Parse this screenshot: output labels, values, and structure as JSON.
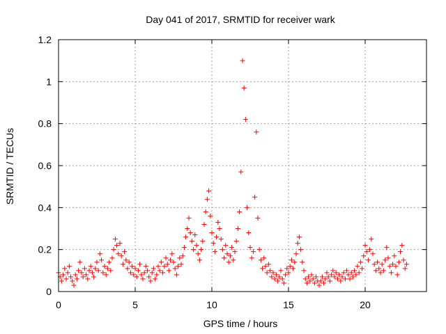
{
  "chart_data": {
    "type": "scatter",
    "title": "Day 041 of 2017, SRMTID for receiver wark",
    "xlabel": "GPS time / hours",
    "ylabel": "SRMTID / TECUs",
    "xlim": [
      0,
      24
    ],
    "ylim": [
      0,
      1.2
    ],
    "x_ticks": [
      0,
      5,
      10,
      15,
      20
    ],
    "x_tick_labels": [
      "0",
      "5",
      "10",
      "15",
      "20"
    ],
    "y_ticks": [
      0,
      0.2,
      0.4,
      0.6,
      0.8,
      1,
      1.2
    ],
    "y_tick_labels": [
      "0",
      "0.2",
      "0.4",
      "0.6",
      "0.8",
      "1",
      "1.2"
    ],
    "grid": true,
    "marker": "+",
    "color": "#ff0000",
    "series": [
      {
        "name": "SRMTID",
        "points": [
          [
            0.0,
            0.09
          ],
          [
            0.1,
            0.07
          ],
          [
            0.2,
            0.05
          ],
          [
            0.3,
            0.08
          ],
          [
            0.4,
            0.11
          ],
          [
            0.5,
            0.06
          ],
          [
            0.6,
            0.09
          ],
          [
            0.7,
            0.12
          ],
          [
            0.8,
            0.07
          ],
          [
            0.9,
            0.05
          ],
          [
            1.0,
            0.03
          ],
          [
            1.1,
            0.08
          ],
          [
            1.2,
            0.06
          ],
          [
            1.3,
            0.1
          ],
          [
            1.4,
            0.14
          ],
          [
            1.5,
            0.09
          ],
          [
            1.6,
            0.07
          ],
          [
            1.7,
            0.11
          ],
          [
            1.8,
            0.08
          ],
          [
            1.9,
            0.06
          ],
          [
            2.0,
            0.1
          ],
          [
            2.1,
            0.12
          ],
          [
            2.2,
            0.09
          ],
          [
            2.3,
            0.07
          ],
          [
            2.4,
            0.11
          ],
          [
            2.5,
            0.14
          ],
          [
            2.6,
            0.1
          ],
          [
            2.7,
            0.18
          ],
          [
            2.8,
            0.15
          ],
          [
            2.9,
            0.09
          ],
          [
            3.0,
            0.12
          ],
          [
            3.1,
            0.08
          ],
          [
            3.2,
            0.11
          ],
          [
            3.3,
            0.14
          ],
          [
            3.4,
            0.1
          ],
          [
            3.5,
            0.16
          ],
          [
            3.6,
            0.2
          ],
          [
            3.7,
            0.25
          ],
          [
            3.8,
            0.22
          ],
          [
            3.9,
            0.18
          ],
          [
            4.0,
            0.23
          ],
          [
            4.1,
            0.17
          ],
          [
            4.2,
            0.13
          ],
          [
            4.3,
            0.19
          ],
          [
            4.4,
            0.15
          ],
          [
            4.5,
            0.11
          ],
          [
            4.6,
            0.14
          ],
          [
            4.7,
            0.09
          ],
          [
            4.8,
            0.12
          ],
          [
            4.9,
            0.08
          ],
          [
            5.0,
            0.11
          ],
          [
            5.1,
            0.07
          ],
          [
            5.2,
            0.1
          ],
          [
            5.3,
            0.13
          ],
          [
            5.4,
            0.08
          ],
          [
            5.5,
            0.06
          ],
          [
            5.6,
            0.09
          ],
          [
            5.7,
            0.12
          ],
          [
            5.8,
            0.1
          ],
          [
            5.9,
            0.07
          ],
          [
            6.0,
            0.05
          ],
          [
            6.1,
            0.09
          ],
          [
            6.2,
            0.11
          ],
          [
            6.3,
            0.06
          ],
          [
            6.4,
            0.08
          ],
          [
            6.5,
            0.12
          ],
          [
            6.6,
            0.1
          ],
          [
            6.7,
            0.14
          ],
          [
            6.8,
            0.09
          ],
          [
            6.9,
            0.12
          ],
          [
            7.0,
            0.16
          ],
          [
            7.1,
            0.13
          ],
          [
            7.2,
            0.1
          ],
          [
            7.3,
            0.15
          ],
          [
            7.4,
            0.18
          ],
          [
            7.5,
            0.14
          ],
          [
            7.6,
            0.11
          ],
          [
            7.7,
            0.08
          ],
          [
            7.8,
            0.12
          ],
          [
            7.9,
            0.16
          ],
          [
            8.0,
            0.13
          ],
          [
            8.1,
            0.17
          ],
          [
            8.2,
            0.21
          ],
          [
            8.3,
            0.26
          ],
          [
            8.4,
            0.3
          ],
          [
            8.5,
            0.35
          ],
          [
            8.6,
            0.28
          ],
          [
            8.7,
            0.24
          ],
          [
            8.8,
            0.2
          ],
          [
            8.9,
            0.27
          ],
          [
            9.0,
            0.22
          ],
          [
            9.1,
            0.18
          ],
          [
            9.2,
            0.15
          ],
          [
            9.3,
            0.2
          ],
          [
            9.4,
            0.24
          ],
          [
            9.5,
            0.32
          ],
          [
            9.6,
            0.38
          ],
          [
            9.7,
            0.44
          ],
          [
            9.8,
            0.48
          ],
          [
            9.9,
            0.36
          ],
          [
            10.0,
            0.28
          ],
          [
            10.1,
            0.23
          ],
          [
            10.2,
            0.19
          ],
          [
            10.3,
            0.26
          ],
          [
            10.4,
            0.33
          ],
          [
            10.5,
            0.3
          ],
          [
            10.6,
            0.25
          ],
          [
            10.7,
            0.2
          ],
          [
            10.8,
            0.16
          ],
          [
            10.9,
            0.22
          ],
          [
            11.0,
            0.18
          ],
          [
            11.1,
            0.14
          ],
          [
            11.2,
            0.17
          ],
          [
            11.3,
            0.21
          ],
          [
            11.4,
            0.15
          ],
          [
            11.5,
            0.19
          ],
          [
            11.6,
            0.24
          ],
          [
            11.7,
            0.3
          ],
          [
            11.8,
            0.38
          ],
          [
            11.9,
            0.57
          ],
          [
            12.0,
            1.1
          ],
          [
            12.1,
            0.97
          ],
          [
            12.2,
            0.82
          ],
          [
            12.3,
            0.4
          ],
          [
            12.4,
            0.28
          ],
          [
            12.5,
            0.21
          ],
          [
            12.6,
            0.16
          ],
          [
            12.7,
            0.19
          ],
          [
            12.8,
            0.45
          ],
          [
            12.9,
            0.76
          ],
          [
            13.0,
            0.35
          ],
          [
            13.1,
            0.2
          ],
          [
            13.2,
            0.15
          ],
          [
            13.3,
            0.11
          ],
          [
            13.4,
            0.16
          ],
          [
            13.5,
            0.12
          ],
          [
            13.6,
            0.09
          ],
          [
            13.7,
            0.13
          ],
          [
            13.8,
            0.1
          ],
          [
            13.9,
            0.07
          ],
          [
            14.0,
            0.09
          ],
          [
            14.1,
            0.06
          ],
          [
            14.2,
            0.08
          ],
          [
            14.3,
            0.05
          ],
          [
            14.4,
            0.07
          ],
          [
            14.5,
            0.1
          ],
          [
            14.6,
            0.06
          ],
          [
            14.7,
            0.04
          ],
          [
            14.8,
            0.08
          ],
          [
            14.9,
            0.11
          ],
          [
            15.0,
            0.09
          ],
          [
            15.1,
            0.12
          ],
          [
            15.2,
            0.15
          ],
          [
            15.3,
            0.11
          ],
          [
            15.4,
            0.14
          ],
          [
            15.5,
            0.18
          ],
          [
            15.6,
            0.23
          ],
          [
            15.7,
            0.26
          ],
          [
            15.8,
            0.2
          ],
          [
            15.9,
            0.14
          ],
          [
            16.0,
            0.1
          ],
          [
            16.1,
            0.06
          ],
          [
            16.2,
            0.04
          ],
          [
            16.3,
            0.07
          ],
          [
            16.4,
            0.05
          ],
          [
            16.5,
            0.08
          ],
          [
            16.6,
            0.06
          ],
          [
            16.7,
            0.04
          ],
          [
            16.8,
            0.07
          ],
          [
            16.9,
            0.05
          ],
          [
            17.0,
            0.03
          ],
          [
            17.1,
            0.05
          ],
          [
            17.2,
            0.07
          ],
          [
            17.3,
            0.04
          ],
          [
            17.4,
            0.06
          ],
          [
            17.5,
            0.09
          ],
          [
            17.6,
            0.07
          ],
          [
            17.7,
            0.05
          ],
          [
            17.8,
            0.08
          ],
          [
            17.9,
            0.1
          ],
          [
            18.0,
            0.07
          ],
          [
            18.1,
            0.09
          ],
          [
            18.2,
            0.06
          ],
          [
            18.3,
            0.08
          ],
          [
            18.4,
            0.05
          ],
          [
            18.5,
            0.07
          ],
          [
            18.6,
            0.09
          ],
          [
            18.7,
            0.06
          ],
          [
            18.8,
            0.1
          ],
          [
            18.9,
            0.08
          ],
          [
            19.0,
            0.06
          ],
          [
            19.1,
            0.09
          ],
          [
            19.2,
            0.07
          ],
          [
            19.3,
            0.1
          ],
          [
            19.4,
            0.08
          ],
          [
            19.5,
            0.12
          ],
          [
            19.6,
            0.09
          ],
          [
            19.7,
            0.14
          ],
          [
            19.8,
            0.11
          ],
          [
            19.9,
            0.17
          ],
          [
            20.0,
            0.22
          ],
          [
            20.1,
            0.19
          ],
          [
            20.2,
            0.15
          ],
          [
            20.3,
            0.2
          ],
          [
            20.4,
            0.25
          ],
          [
            20.5,
            0.18
          ],
          [
            20.6,
            0.13
          ],
          [
            20.7,
            0.1
          ],
          [
            20.8,
            0.14
          ],
          [
            20.9,
            0.11
          ],
          [
            21.0,
            0.09
          ],
          [
            21.1,
            0.13
          ],
          [
            21.2,
            0.1
          ],
          [
            21.3,
            0.15
          ],
          [
            21.4,
            0.21
          ],
          [
            21.5,
            0.16
          ],
          [
            21.6,
            0.12
          ],
          [
            21.7,
            0.09
          ],
          [
            21.8,
            0.13
          ],
          [
            21.9,
            0.17
          ],
          [
            22.0,
            0.12
          ],
          [
            22.1,
            0.08
          ],
          [
            22.2,
            0.14
          ],
          [
            22.3,
            0.19
          ],
          [
            22.4,
            0.22
          ],
          [
            22.5,
            0.15
          ],
          [
            22.6,
            0.11
          ],
          [
            22.7,
            0.13
          ]
        ]
      }
    ]
  }
}
